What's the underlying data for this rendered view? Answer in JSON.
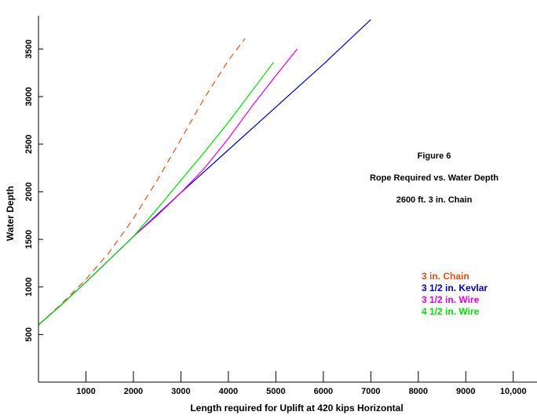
{
  "chart_data": {
    "type": "line",
    "xlabel": "Length required for Uplift at 420 kips Horizontal",
    "ylabel": "Water Depth",
    "xlim": [
      0,
      10500
    ],
    "ylim": [
      0,
      3850
    ],
    "x_ticks": [
      1000,
      2000,
      3000,
      4000,
      5000,
      6000,
      7000,
      8000,
      9000,
      10000
    ],
    "x_tick_labels": [
      "1000",
      "2000",
      "3000",
      "4000",
      "5000",
      "6000",
      "7000",
      "8000",
      "9000",
      "10,000"
    ],
    "y_ticks": [
      500,
      1000,
      1500,
      2000,
      2500,
      3000,
      3500
    ],
    "y_tick_labels": [
      "500",
      "1000",
      "1500",
      "2000",
      "2500",
      "3000",
      "3500"
    ],
    "annotations": [
      "Figure 6",
      "Rope Required vs. Water Depth",
      "2600 ft.  3 in. Chain"
    ],
    "legend_position": "right",
    "series": [
      {
        "name": "3 in. Chain",
        "color": "#e0501a",
        "dash": true,
        "x": [
          0,
          500,
          1000,
          1500,
          2000,
          2500,
          3000,
          3500,
          4000,
          4350
        ],
        "y": [
          600,
          830,
          1080,
          1370,
          1720,
          2120,
          2550,
          2990,
          3380,
          3610
        ]
      },
      {
        "name": "3 1/2 in. Kevlar",
        "color": "#0000c8",
        "dash": false,
        "x": [
          0,
          500,
          1000,
          1500,
          2000,
          3000,
          4000,
          5000,
          6000,
          7000
        ],
        "y": [
          600,
          820,
          1050,
          1290,
          1530,
          1990,
          2440,
          2890,
          3340,
          3810
        ]
      },
      {
        "name": "3 1/2 in. Wire",
        "color": "#e000e0",
        "dash": false,
        "x": [
          0,
          500,
          1000,
          1500,
          2000,
          2500,
          3000,
          3500,
          4000,
          4500,
          5000,
          5450
        ],
        "y": [
          600,
          820,
          1050,
          1290,
          1530,
          1750,
          1990,
          2250,
          2560,
          2900,
          3220,
          3500
        ]
      },
      {
        "name": "4 1/2 in. Wire",
        "color": "#00e000",
        "dash": false,
        "x": [
          0,
          500,
          1000,
          1500,
          2000,
          2500,
          3000,
          3500,
          4000,
          4500,
          4950
        ],
        "y": [
          600,
          820,
          1050,
          1290,
          1530,
          1820,
          2120,
          2420,
          2730,
          3060,
          3360
        ]
      }
    ]
  }
}
